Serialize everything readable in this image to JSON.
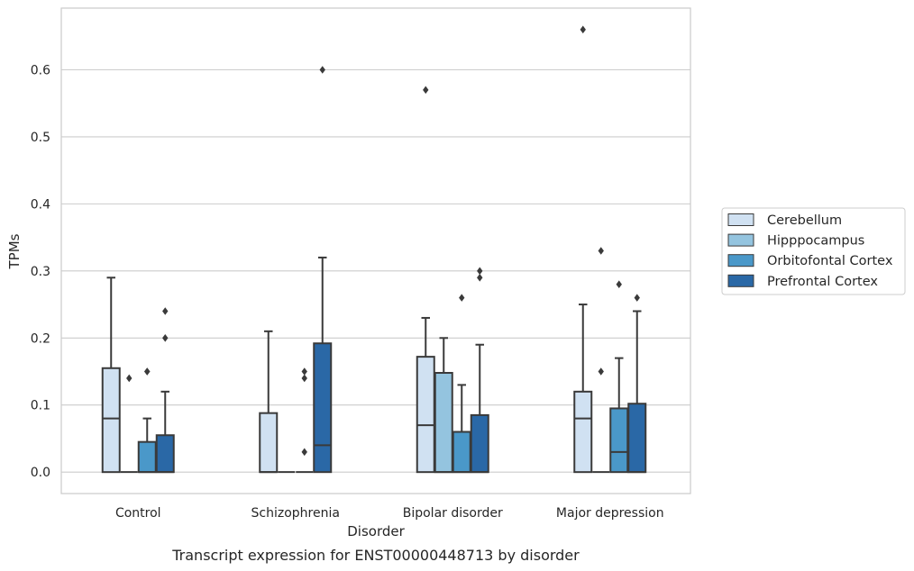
{
  "chart_data": {
    "type": "box",
    "title": "",
    "caption": "Transcript expression for ENST00000448713 by disorder",
    "xlabel": "Disorder",
    "ylabel": "TPMs",
    "ylim": [
      -0.032,
      0.692
    ],
    "yticks": [
      "0.0",
      "0.1",
      "0.2",
      "0.3",
      "0.4",
      "0.5",
      "0.6"
    ],
    "grid": "horizontal",
    "legend_position": "right",
    "categories": [
      "Control",
      "Schizophrenia",
      "Bipolar disorder",
      "Major depression"
    ],
    "series": [
      {
        "name": "Cerebellum",
        "color": "#d0e1f2",
        "boxes": [
          {
            "q1": 0.0,
            "median": 0.08,
            "q3": 0.155,
            "whisker_low": 0.0,
            "whisker_high": 0.29,
            "outliers": []
          },
          {
            "q1": 0.0,
            "median": 0.0,
            "q3": 0.088,
            "whisker_low": 0.0,
            "whisker_high": 0.21,
            "outliers": []
          },
          {
            "q1": 0.0,
            "median": 0.07,
            "q3": 0.172,
            "whisker_low": 0.0,
            "whisker_high": 0.23,
            "outliers": [
              0.57
            ]
          },
          {
            "q1": 0.0,
            "median": 0.08,
            "q3": 0.12,
            "whisker_low": 0.0,
            "whisker_high": 0.25,
            "outliers": [
              0.66
            ]
          }
        ]
      },
      {
        "name": "Hipppocampus",
        "color": "#94c4df",
        "boxes": [
          {
            "q1": 0.0,
            "median": 0.0,
            "q3": 0.0,
            "whisker_low": 0.0,
            "whisker_high": 0.0,
            "outliers": [
              0.14
            ]
          },
          {
            "q1": 0.0,
            "median": 0.0,
            "q3": 0.0,
            "whisker_low": 0.0,
            "whisker_high": 0.0,
            "outliers": []
          },
          {
            "q1": 0.0,
            "median": 0.0,
            "q3": 0.148,
            "whisker_low": 0.0,
            "whisker_high": 0.2,
            "outliers": []
          },
          {
            "q1": 0.0,
            "median": 0.0,
            "q3": 0.0,
            "whisker_low": 0.0,
            "whisker_high": 0.0,
            "outliers": [
              0.15,
              0.33
            ]
          }
        ]
      },
      {
        "name": "Orbitofontal Cortex",
        "color": "#4a98c9",
        "boxes": [
          {
            "q1": 0.0,
            "median": 0.0,
            "q3": 0.045,
            "whisker_low": 0.0,
            "whisker_high": 0.08,
            "outliers": [
              0.15,
              0.15
            ]
          },
          {
            "q1": 0.0,
            "median": 0.0,
            "q3": 0.0,
            "whisker_low": 0.0,
            "whisker_high": 0.0,
            "outliers": [
              0.03,
              0.14,
              0.15
            ]
          },
          {
            "q1": 0.0,
            "median": 0.0,
            "q3": 0.06,
            "whisker_low": 0.0,
            "whisker_high": 0.13,
            "outliers": [
              0.26
            ]
          },
          {
            "q1": 0.0,
            "median": 0.03,
            "q3": 0.095,
            "whisker_low": 0.0,
            "whisker_high": 0.17,
            "outliers": [
              0.28
            ]
          }
        ]
      },
      {
        "name": "Prefrontal Cortex",
        "color": "#2a68a6",
        "boxes": [
          {
            "q1": 0.0,
            "median": 0.0,
            "q3": 0.055,
            "whisker_low": 0.0,
            "whisker_high": 0.12,
            "outliers": [
              0.2,
              0.24
            ]
          },
          {
            "q1": 0.0,
            "median": 0.04,
            "q3": 0.192,
            "whisker_low": 0.0,
            "whisker_high": 0.32,
            "outliers": [
              0.6
            ]
          },
          {
            "q1": 0.0,
            "median": 0.0,
            "q3": 0.085,
            "whisker_low": 0.0,
            "whisker_high": 0.19,
            "outliers": [
              0.29,
              0.3
            ]
          },
          {
            "q1": 0.0,
            "median": 0.0,
            "q3": 0.102,
            "whisker_low": 0.0,
            "whisker_high": 0.24,
            "outliers": [
              0.26
            ]
          }
        ]
      }
    ]
  }
}
